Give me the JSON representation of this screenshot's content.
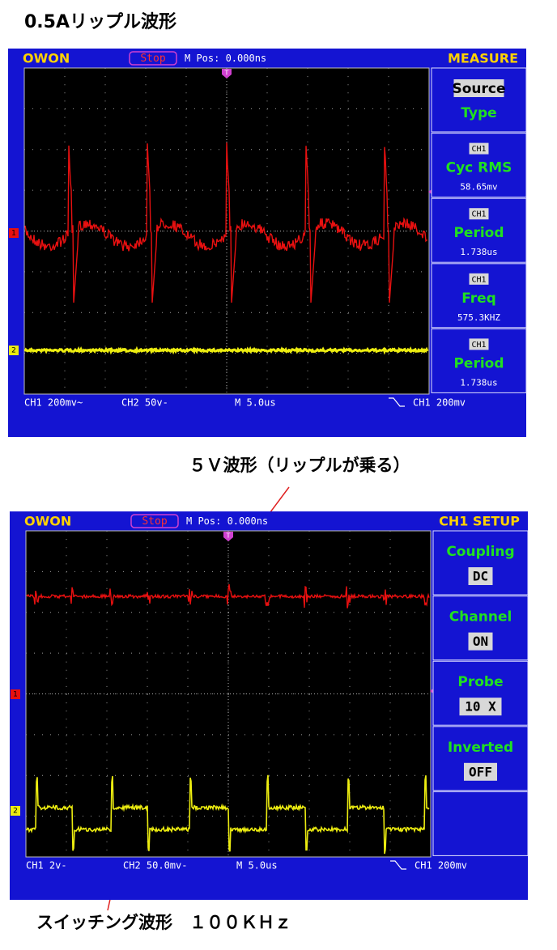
{
  "title": "0.5Aリップル波形",
  "scopes": [
    {
      "header": {
        "brand": "OWON",
        "status": "Stop",
        "position": "M Pos: 0.000ns",
        "menu_title": "MEASURE"
      },
      "markers": {
        "trigger": "T",
        "ch1": "1",
        "ch2": "2"
      },
      "menu": [
        {
          "name": "Source",
          "value": "Type"
        },
        {
          "channel": "CH1",
          "name": "Cyc RMS",
          "value": "58.65mv"
        },
        {
          "channel": "CH1",
          "name": "Period",
          "value": "1.738us"
        },
        {
          "channel": "CH1",
          "name": "Freq",
          "value": "575.3KHZ"
        },
        {
          "channel": "CH1",
          "name": "Period",
          "value": "1.738us"
        }
      ],
      "status_bar": [
        "CH1 200mv~",
        "CH2 50v-",
        "M 5.0us",
        "CH1 200mv"
      ]
    },
    {
      "header": {
        "brand": "OWON",
        "status": "Stop",
        "position": "M Pos: 0.000ns",
        "menu_title": "CH1 SETUP"
      },
      "markers": {
        "trigger": "T",
        "ch1": "1",
        "ch2": "2"
      },
      "menu": [
        {
          "name": "Coupling",
          "value": "DC"
        },
        {
          "name": "Channel",
          "value": "ON"
        },
        {
          "name": "Probe",
          "value": "10 X"
        },
        {
          "name": "Inverted",
          "value": "OFF"
        }
      ],
      "status_bar": [
        "CH1 2v-",
        "CH2 50.0mv-",
        "M 5.0us",
        "CH1 200mv"
      ]
    }
  ],
  "annotations": [
    "５Ｖ波形（リップルが乗る）",
    "スイッチング波形　１００ＫＨｚ"
  ]
}
